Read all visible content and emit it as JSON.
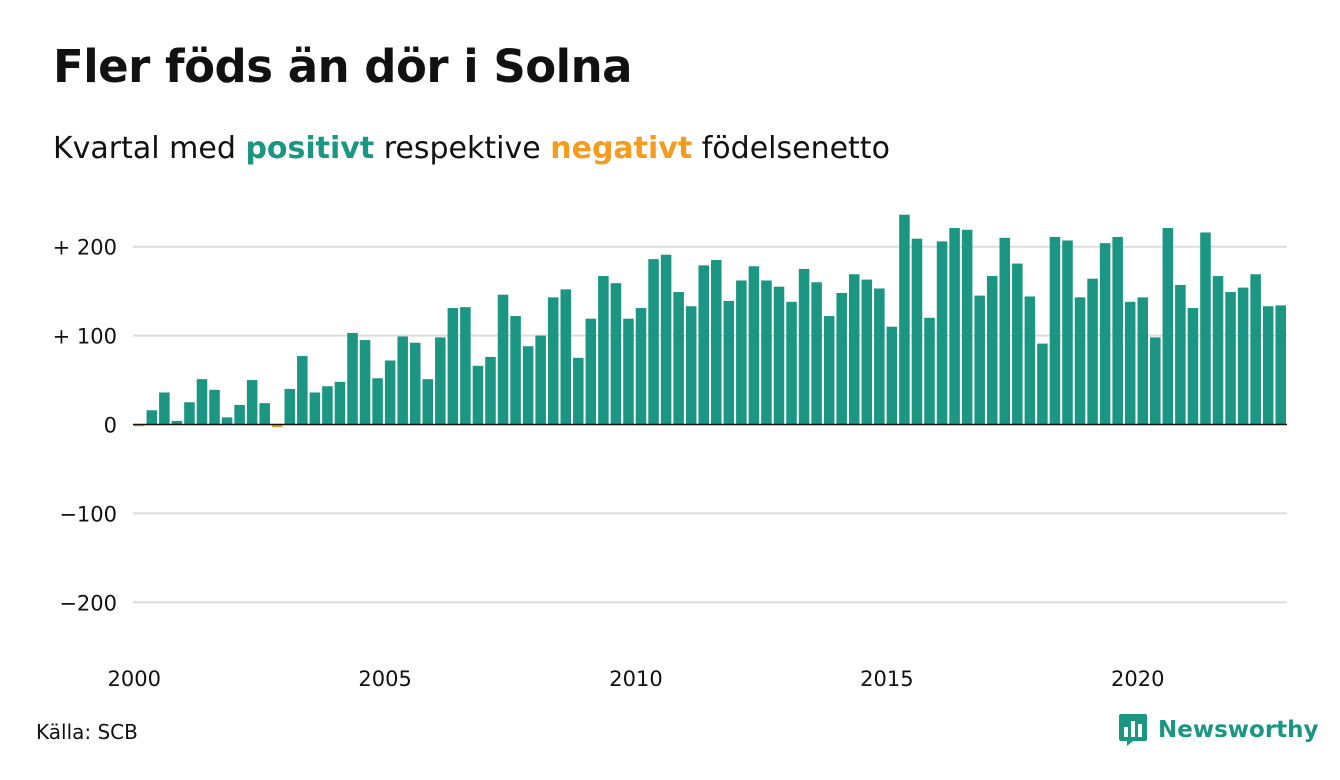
{
  "colors": {
    "positive": "#1a9682",
    "negative": "#f39c1e",
    "grid": "#dddddd",
    "zero_line": "#111111",
    "text": "#111111"
  },
  "header": {
    "title": "Fler föds än dör i Solna",
    "subtitle_before": "Kvartal med",
    "subtitle_positive": "positivt",
    "subtitle_middle": "respektive",
    "subtitle_negative": "negativt",
    "subtitle_after": "födelsenetto"
  },
  "footer": {
    "source": "Källa: SCB",
    "logo_text": "Newsworthy",
    "logo_icon": "bar-chart-speech-bubble-icon"
  },
  "chart_data": {
    "type": "bar",
    "y_ticks": [
      {
        "value": 200,
        "label": "+ 200"
      },
      {
        "value": 100,
        "label": "+ 100"
      },
      {
        "value": 0,
        "label": "0"
      },
      {
        "value": -100,
        "label": "−100"
      },
      {
        "value": -200,
        "label": "−200"
      }
    ],
    "x_ticks": [
      {
        "index": 0,
        "label": "2000"
      },
      {
        "index": 20,
        "label": "2005"
      },
      {
        "index": 40,
        "label": "2010"
      },
      {
        "index": 60,
        "label": "2015"
      },
      {
        "index": 80,
        "label": "2020"
      }
    ],
    "ylim": [
      -230,
      240
    ],
    "grid": true,
    "values": [
      -2,
      16,
      36,
      4,
      25,
      51,
      39,
      8,
      22,
      50,
      24,
      -3,
      40,
      77,
      36,
      43,
      48,
      103,
      95,
      52,
      72,
      99,
      92,
      51,
      98,
      131,
      132,
      66,
      76,
      146,
      122,
      88,
      100,
      143,
      152,
      75,
      119,
      167,
      159,
      119,
      131,
      186,
      191,
      149,
      133,
      179,
      185,
      139,
      162,
      178,
      162,
      155,
      138,
      175,
      160,
      122,
      148,
      169,
      163,
      153,
      110,
      236,
      209,
      120,
      206,
      221,
      219,
      145,
      167,
      210,
      181,
      144,
      91,
      211,
      207,
      143,
      164,
      204,
      211,
      138,
      143,
      98,
      221,
      157,
      131,
      216,
      167,
      149,
      154,
      169,
      133,
      134
    ]
  }
}
